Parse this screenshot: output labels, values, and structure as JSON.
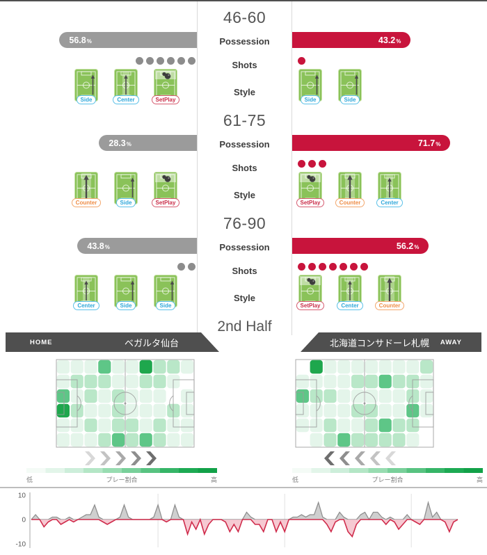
{
  "labels": {
    "possession": "Possession",
    "shots": "Shots",
    "style": "Style",
    "half": "2nd Half",
    "percent": "%"
  },
  "periods": [
    {
      "label": "46-60",
      "home": {
        "possession_pct": "56.8",
        "shots": 6,
        "styles": [
          {
            "label": "Side",
            "type": "side"
          },
          {
            "label": "Center",
            "type": "center"
          },
          {
            "label": "SetPlay",
            "type": "setplay"
          }
        ]
      },
      "away": {
        "possession_pct": "43.2",
        "shots": 1,
        "styles": [
          {
            "label": "Side",
            "type": "side"
          },
          {
            "label": "Side",
            "type": "side"
          }
        ]
      }
    },
    {
      "label": "61-75",
      "home": {
        "possession_pct": "28.3",
        "shots": 0,
        "styles": [
          {
            "label": "Counter",
            "type": "counter"
          },
          {
            "label": "Side",
            "type": "side"
          },
          {
            "label": "SetPlay",
            "type": "setplay"
          }
        ]
      },
      "away": {
        "possession_pct": "71.7",
        "shots": 3,
        "styles": [
          {
            "label": "SetPlay",
            "type": "setplay"
          },
          {
            "label": "Counter",
            "type": "counter"
          },
          {
            "label": "Center",
            "type": "center"
          }
        ]
      }
    },
    {
      "label": "76-90",
      "home": {
        "possession_pct": "43.8",
        "shots": 2,
        "styles": [
          {
            "label": "Center",
            "type": "center"
          },
          {
            "label": "Side",
            "type": "side"
          },
          {
            "label": "Side",
            "type": "side"
          }
        ]
      },
      "away": {
        "possession_pct": "56.2",
        "shots": 7,
        "styles": [
          {
            "label": "SetPlay",
            "type": "setplay"
          },
          {
            "label": "Center",
            "type": "center"
          },
          {
            "label": "Counter",
            "type": "counter"
          }
        ]
      }
    }
  ],
  "teams": {
    "home": {
      "tag": "HOME",
      "name": "ベガルタ仙台"
    },
    "away": {
      "tag": "AWAY",
      "name": "北海道コンサドーレ札幌"
    }
  },
  "heatmap": {
    "legend": {
      "low": "低",
      "label": "プレー割合",
      "high": "高"
    },
    "level_colors": [
      "#ffffff",
      "#e4f5ea",
      "#b9e7c8",
      "#5ec687",
      "#1ea74d"
    ],
    "home": {
      "direction": "right",
      "grid": [
        [
          1,
          1,
          1,
          3,
          1,
          1,
          4,
          2,
          2,
          1
        ],
        [
          1,
          2,
          2,
          2,
          1,
          1,
          2,
          2,
          1,
          0
        ],
        [
          3,
          1,
          2,
          1,
          2,
          1,
          1,
          1,
          0,
          1
        ],
        [
          4,
          2,
          1,
          1,
          2,
          1,
          1,
          1,
          2,
          1
        ],
        [
          1,
          1,
          2,
          1,
          2,
          2,
          1,
          2,
          1,
          1
        ],
        [
          1,
          1,
          1,
          2,
          3,
          2,
          3,
          2,
          1,
          1
        ]
      ]
    },
    "away": {
      "direction": "left",
      "grid": [
        [
          0,
          4,
          1,
          1,
          1,
          1,
          1,
          1,
          1,
          2
        ],
        [
          1,
          1,
          1,
          1,
          2,
          2,
          3,
          2,
          2,
          1
        ],
        [
          3,
          2,
          2,
          1,
          1,
          1,
          1,
          1,
          2,
          1
        ],
        [
          1,
          1,
          1,
          1,
          2,
          2,
          1,
          1,
          3,
          1
        ],
        [
          1,
          1,
          2,
          1,
          1,
          2,
          3,
          2,
          2,
          0
        ],
        [
          0,
          1,
          2,
          3,
          2,
          2,
          2,
          2,
          1,
          0
        ]
      ]
    }
  },
  "colors": {
    "home_bar": "#9b9b9b",
    "away_bar": "#c8143c",
    "style_side": "#2FA7DA",
    "style_center": "#2FA7DA",
    "style_counter": "#EE8C45",
    "style_setplay": "#C92C47",
    "banner_bg": "#4f4f4f"
  },
  "chart_data": {
    "type": "area",
    "title": "attack momentum by minute (positive = home gray, negative = away red)",
    "x_minutes_range": [
      0,
      101
    ],
    "ylim": [
      -10,
      10
    ],
    "yticks": [
      "10",
      "0",
      "-10"
    ],
    "gridlines_minutes": [
      30,
      60,
      90
    ],
    "series": [
      {
        "name": "home-momentum",
        "color": "#8f8f8f",
        "fill": "#cfcfcf"
      },
      {
        "name": "away-momentum",
        "color": "#cf2b4b",
        "fill": "#f5c0ca"
      }
    ],
    "values": [
      0,
      2,
      0,
      -3,
      -1,
      1,
      1,
      -2,
      -1,
      1,
      -1,
      0,
      1,
      2,
      2,
      6,
      1,
      -1,
      -2,
      -1,
      0,
      1,
      6,
      1,
      0,
      0,
      0,
      0,
      0,
      1,
      6,
      0,
      -1,
      0,
      6,
      1,
      0,
      -6,
      -1,
      -4,
      0,
      -6,
      -2,
      0,
      0,
      0,
      -1,
      -5,
      -2,
      -5,
      0,
      3,
      1,
      -2,
      -2,
      -5,
      0,
      0,
      -5,
      -1,
      -5,
      0,
      1,
      1,
      2,
      1,
      2,
      2,
      7,
      1,
      -2,
      -5,
      -1,
      3,
      1,
      -5,
      -7,
      -2,
      2,
      3,
      0,
      3,
      3,
      1,
      -2,
      1,
      -1,
      -4,
      -2,
      2,
      0,
      -1,
      -2,
      0,
      7,
      1,
      3,
      0,
      -1,
      -5,
      -1,
      0
    ]
  }
}
